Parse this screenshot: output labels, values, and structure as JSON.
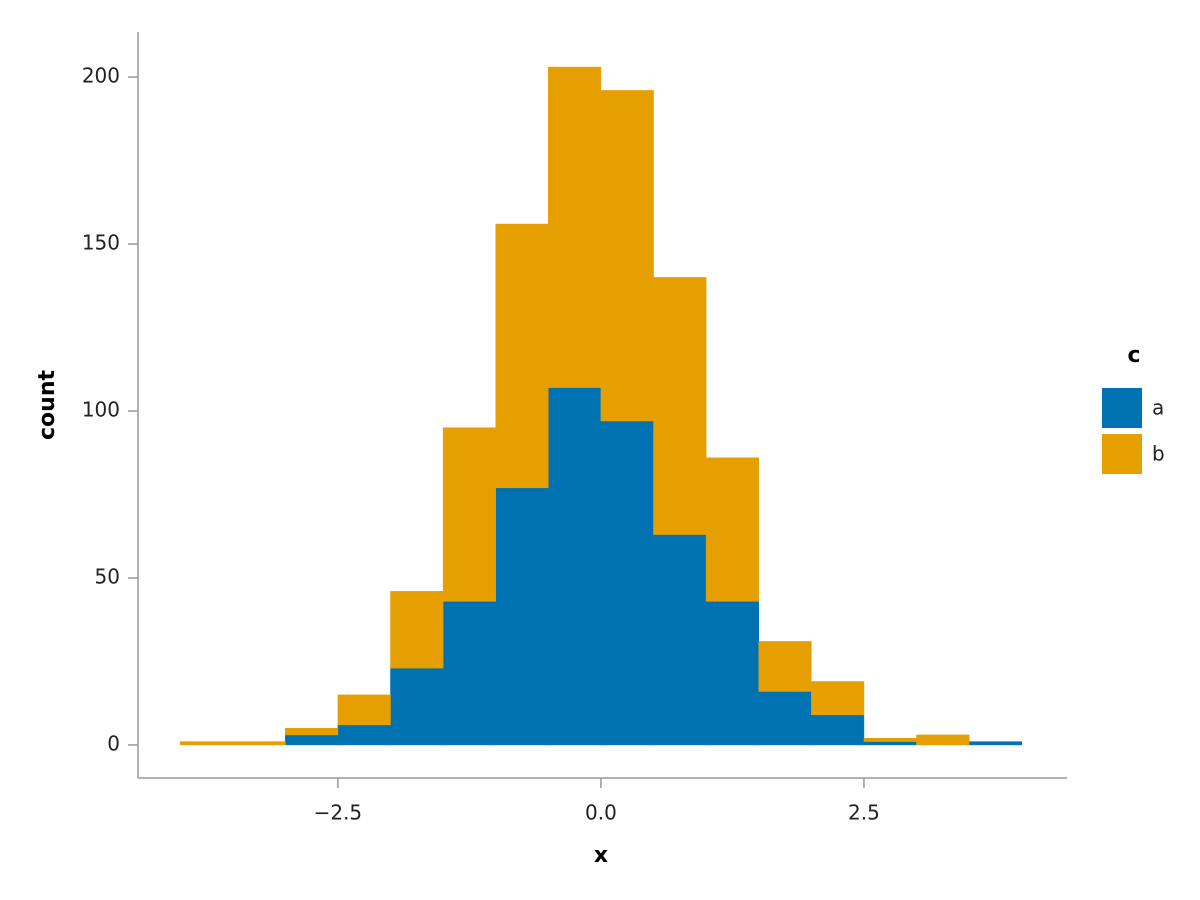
{
  "chart_data": {
    "type": "histogram",
    "x_label": "x",
    "y_label": "count",
    "legend_title": "c",
    "legend": "right",
    "stacked": true,
    "grid": false,
    "bins": [
      -4,
      -3.5,
      -3,
      -2.5,
      -2,
      -1.5,
      -1,
      -0.5,
      0,
      0.5,
      1,
      1.5,
      2,
      2.5,
      3,
      3.5,
      4
    ],
    "series": [
      {
        "name": "a",
        "color": "#0072b2",
        "values": [
          0,
          0,
          3,
          6,
          23,
          43,
          77,
          107,
          97,
          63,
          43,
          16,
          9,
          1,
          0,
          1
        ]
      },
      {
        "name": "b",
        "color": "#e69f00",
        "values": [
          1,
          1,
          2,
          9,
          23,
          52,
          79,
          96,
          99,
          77,
          43,
          15,
          10,
          1,
          3,
          0
        ]
      }
    ],
    "xlim": [
      -4.4,
      4.43
    ],
    "ylim": [
      -9.9,
      213.5
    ],
    "xticks": [
      {
        "value": -2.5,
        "label": "−2.5"
      },
      {
        "value": 0,
        "label": "0.0"
      },
      {
        "value": 2.5,
        "label": "2.5"
      }
    ],
    "yticks": [
      0,
      50,
      100,
      150,
      200
    ]
  }
}
